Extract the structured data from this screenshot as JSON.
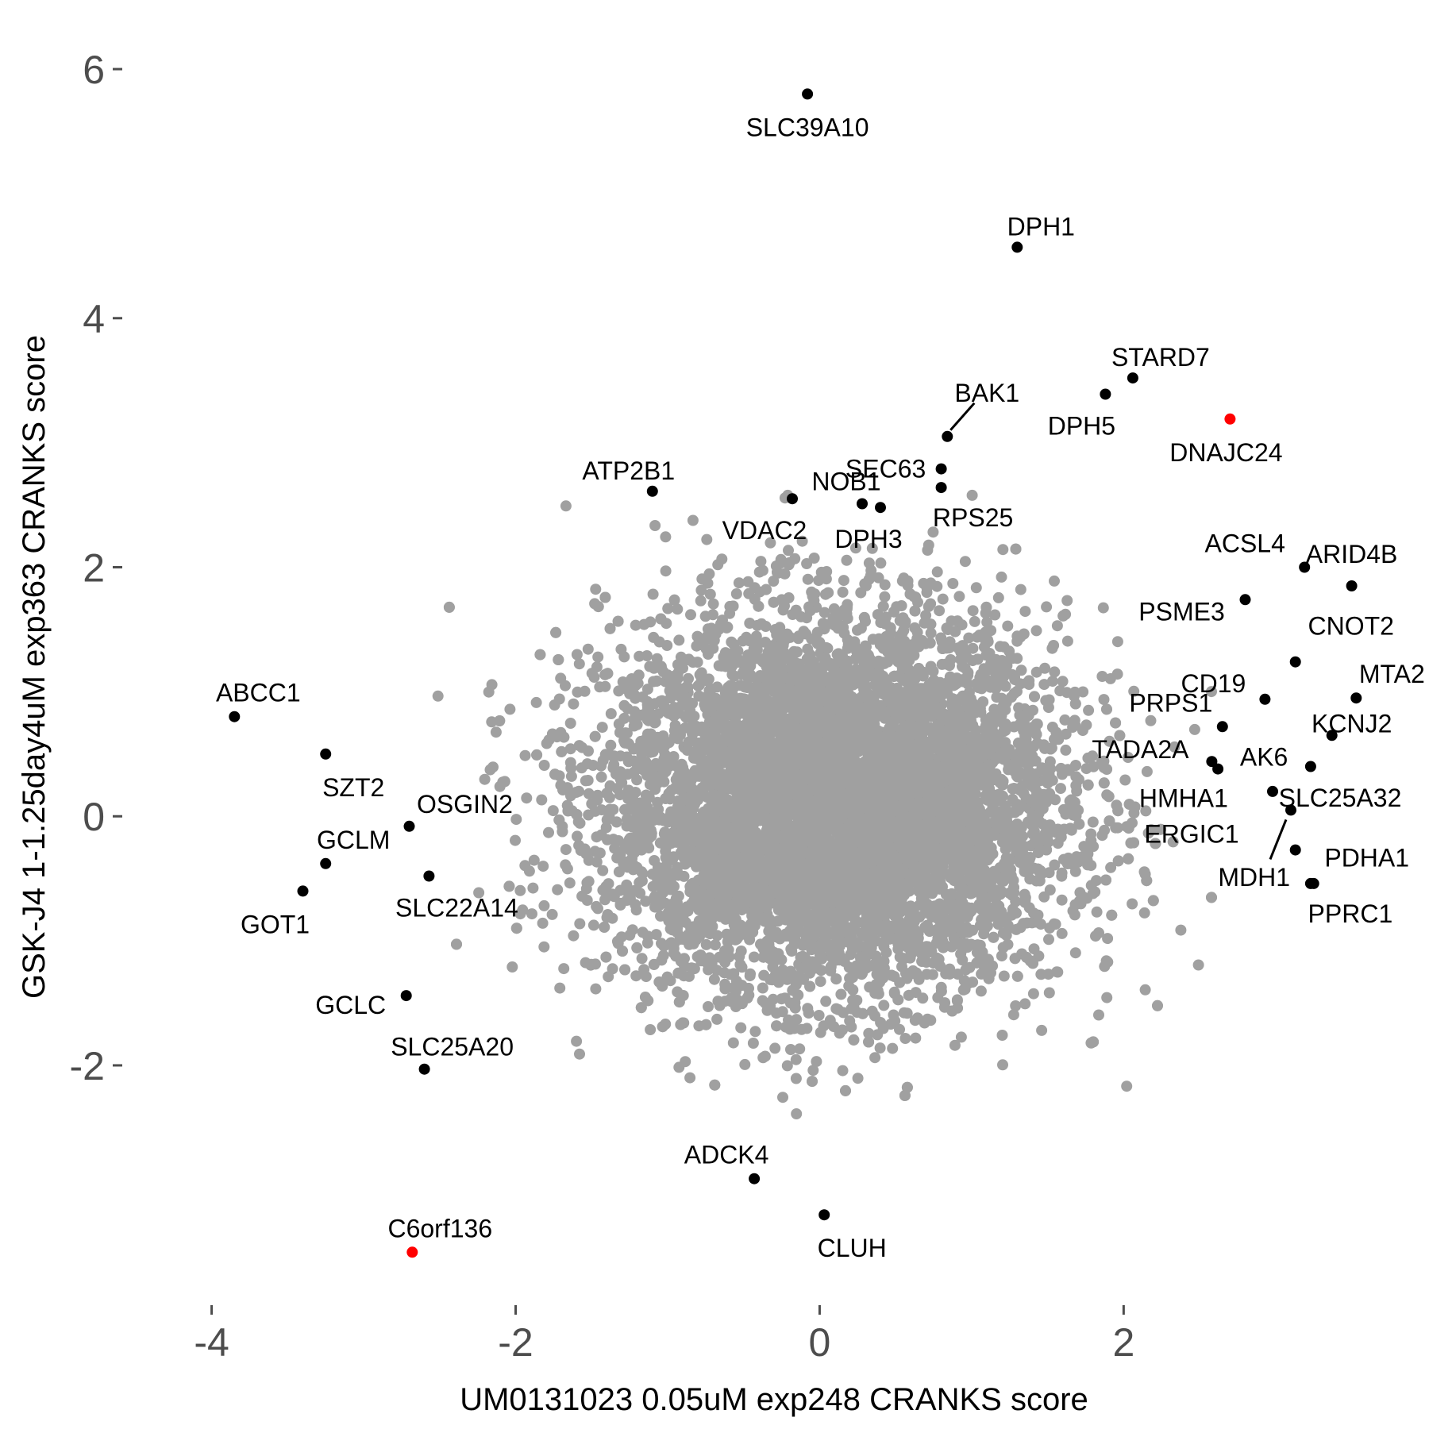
{
  "chart_data": {
    "type": "scatter",
    "xlabel": "UM0131023 0.05uM exp248 CRANKS score",
    "ylabel": "GSK-J4 1-1.25day4uM exp363 CRANKS score",
    "xlim": [
      -4.4,
      3.8
    ],
    "ylim": [
      -3.9,
      6.3
    ],
    "x_ticks": [
      -4,
      -2,
      0,
      2
    ],
    "y_ticks": [
      -2,
      0,
      2,
      4,
      6
    ],
    "x_tick_labels": [
      "-4",
      "-2",
      "0",
      "2"
    ],
    "y_tick_labels": [
      "-2",
      "0",
      "2",
      "4",
      "6"
    ],
    "grid": false,
    "colors": {
      "background": "#a0a0a0",
      "highlight": "#000000",
      "special": "#ff0000",
      "tick": "#4d4d4d"
    },
    "background_points": {
      "description": "about 8000 other genes, roughly bivariate normal around the origin",
      "count": 8000,
      "x_mean": 0.1,
      "x_sd": 0.75,
      "y_mean": 0.1,
      "y_sd": 0.75,
      "color": "#a0a0a0"
    },
    "labeled_points": [
      {
        "label": "SLC39A10",
        "x": -0.08,
        "y": 5.8,
        "color": "#000000"
      },
      {
        "label": "DPH1",
        "x": 1.3,
        "y": 4.57,
        "color": "#000000"
      },
      {
        "label": "STARD7",
        "x": 2.06,
        "y": 3.52,
        "color": "#000000"
      },
      {
        "label": "DPH5",
        "x": 1.88,
        "y": 3.39,
        "color": "#000000"
      },
      {
        "label": "DNAJC24",
        "x": 2.7,
        "y": 3.19,
        "color": "#ff0000"
      },
      {
        "label": "BAK1",
        "x": 0.84,
        "y": 3.05,
        "color": "#000000"
      },
      {
        "label": "SEC63",
        "x": 0.8,
        "y": 2.79,
        "color": "#000000"
      },
      {
        "label": "RPS25",
        "x": 0.8,
        "y": 2.64,
        "color": "#000000"
      },
      {
        "label": "ATP2B1",
        "x": -1.1,
        "y": 2.61,
        "color": "#000000"
      },
      {
        "label": "VDAC2",
        "x": -0.18,
        "y": 2.55,
        "color": "#000000"
      },
      {
        "label": "NOB1",
        "x": 0.28,
        "y": 2.51,
        "color": "#000000"
      },
      {
        "label": "DPH3",
        "x": 0.4,
        "y": 2.48,
        "color": "#000000"
      },
      {
        "label": "ARID4B",
        "x": 3.5,
        "y": 1.85,
        "color": "#000000"
      },
      {
        "label": "ACSL4",
        "x": 3.19,
        "y": 2.0,
        "color": "#000000"
      },
      {
        "label": "PSME3",
        "x": 2.8,
        "y": 1.74,
        "color": "#000000"
      },
      {
        "label": "CNOT2",
        "x": 3.13,
        "y": 1.24,
        "color": "#000000"
      },
      {
        "label": "CD19",
        "x": 2.93,
        "y": 0.94,
        "color": "#000000"
      },
      {
        "label": "MTA2",
        "x": 3.53,
        "y": 0.95,
        "color": "#000000"
      },
      {
        "label": "PRPS1",
        "x": 2.65,
        "y": 0.72,
        "color": "#000000"
      },
      {
        "label": "KCNJ2",
        "x": 3.37,
        "y": 0.65,
        "color": "#000000"
      },
      {
        "label": "TADA2A",
        "x": 2.58,
        "y": 0.44,
        "color": "#000000"
      },
      {
        "label": "AK6",
        "x": 2.62,
        "y": 0.38,
        "color": "#000000"
      },
      {
        "label": "HMHA1",
        "x": 3.23,
        "y": 0.4,
        "color": "#000000"
      },
      {
        "label": "SLC25A32",
        "x": 2.98,
        "y": 0.2,
        "color": "#000000"
      },
      {
        "label": "ERGIC1",
        "x": 3.1,
        "y": 0.05,
        "color": "#000000"
      },
      {
        "label": "PDHA1",
        "x": 3.13,
        "y": -0.27,
        "color": "#000000"
      },
      {
        "label": "MDH1",
        "x": 3.25,
        "y": -0.54,
        "color": "#000000"
      },
      {
        "label": "PPRC1",
        "x": 3.23,
        "y": -0.54,
        "color": "#000000"
      },
      {
        "label": "ABCC1",
        "x": -3.85,
        "y": 0.8,
        "color": "#000000"
      },
      {
        "label": "SZT2",
        "x": -3.25,
        "y": 0.5,
        "color": "#000000"
      },
      {
        "label": "OSGIN2",
        "x": -2.7,
        "y": -0.08,
        "color": "#000000"
      },
      {
        "label": "GCLM",
        "x": -3.25,
        "y": -0.38,
        "color": "#000000"
      },
      {
        "label": "SLC22A14",
        "x": -2.57,
        "y": -0.48,
        "color": "#000000"
      },
      {
        "label": "GOT1",
        "x": -3.4,
        "y": -0.6,
        "color": "#000000"
      },
      {
        "label": "GCLC",
        "x": -2.72,
        "y": -1.44,
        "color": "#000000"
      },
      {
        "label": "SLC25A20",
        "x": -2.6,
        "y": -2.03,
        "color": "#000000"
      },
      {
        "label": "ADCK4",
        "x": -0.43,
        "y": -2.91,
        "color": "#000000"
      },
      {
        "label": "CLUH",
        "x": 0.03,
        "y": -3.2,
        "color": "#000000"
      },
      {
        "label": "C6orf136",
        "x": -2.68,
        "y": -3.5,
        "color": "#ff0000"
      }
    ]
  }
}
